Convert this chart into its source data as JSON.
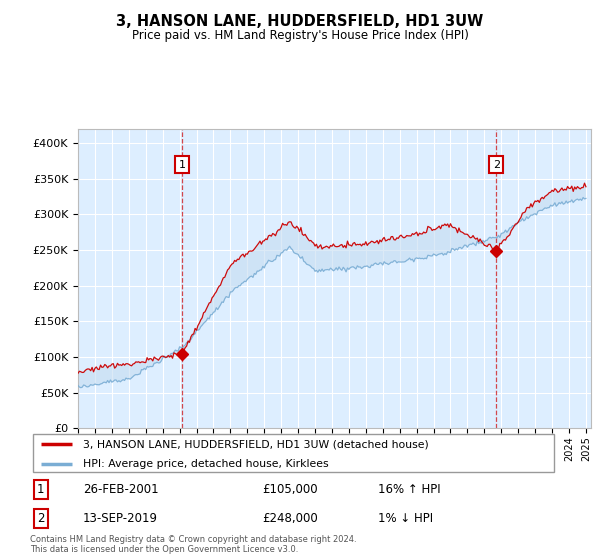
{
  "title": "3, HANSON LANE, HUDDERSFIELD, HD1 3UW",
  "subtitle": "Price paid vs. HM Land Registry's House Price Index (HPI)",
  "ylim": [
    0,
    420000
  ],
  "yticks": [
    0,
    50000,
    100000,
    150000,
    200000,
    250000,
    300000,
    350000,
    400000
  ],
  "ytick_labels": [
    "£0",
    "£50K",
    "£100K",
    "£150K",
    "£200K",
    "£250K",
    "£300K",
    "£350K",
    "£400K"
  ],
  "plot_bg": "#ddeeff",
  "sale1_date": 2001.15,
  "sale1_price": 105000,
  "sale2_date": 2019.71,
  "sale2_price": 248000,
  "legend_line1": "3, HANSON LANE, HUDDERSFIELD, HD1 3UW (detached house)",
  "legend_line2": "HPI: Average price, detached house, Kirklees",
  "annot1": [
    "1",
    "26-FEB-2001",
    "£105,000",
    "16% ↑ HPI"
  ],
  "annot2": [
    "2",
    "13-SEP-2019",
    "£248,000",
    "1% ↓ HPI"
  ],
  "footer": "Contains HM Land Registry data © Crown copyright and database right 2024.\nThis data is licensed under the Open Government Licence v3.0.",
  "red_color": "#cc0000",
  "blue_color": "#7aadd4",
  "fill_color": "#c5ddf0"
}
